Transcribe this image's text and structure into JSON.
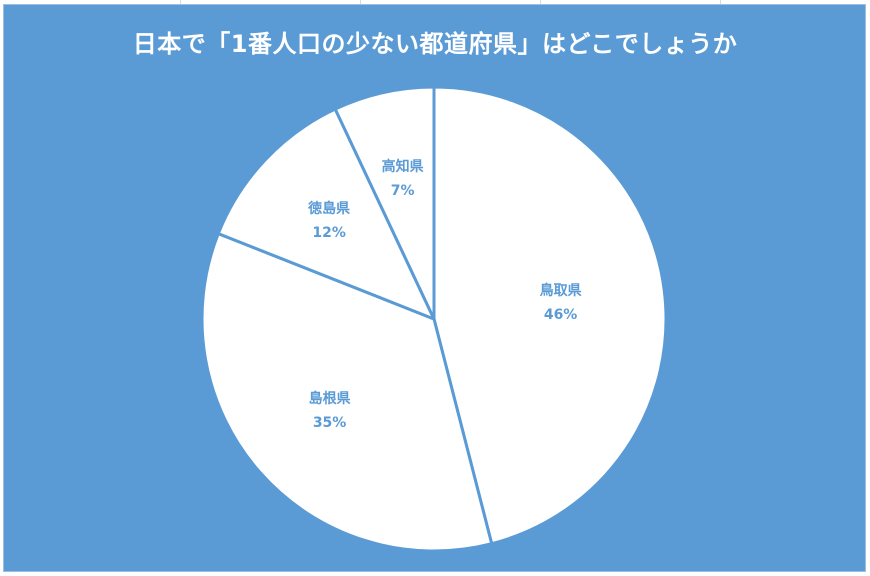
{
  "chart_data": {
    "type": "pie",
    "title": "日本で「1番人口の少ない都道府県」はどこでしょうか",
    "categories": [
      "鳥取県",
      "島根県",
      "徳島県",
      "高知県"
    ],
    "values": [
      46,
      35,
      12,
      7
    ],
    "labels": [
      {
        "name": "鳥取県",
        "percent": "46%"
      },
      {
        "name": "島根県",
        "percent": "35%"
      },
      {
        "name": "徳島県",
        "percent": "12%"
      },
      {
        "name": "高知県",
        "percent": "7%"
      }
    ],
    "legend": "none",
    "colors": {
      "background": "#5b9bd5",
      "slice_fill": "#ffffff",
      "slice_border": "#5b9bd5",
      "label": "#5b9bd5",
      "title": "#ffffff"
    }
  }
}
